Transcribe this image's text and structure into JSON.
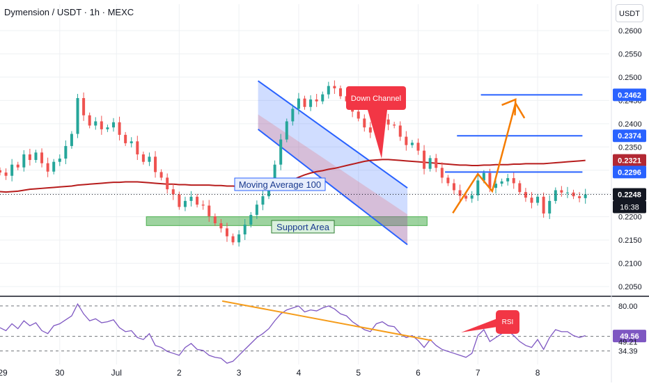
{
  "header": {
    "title": "Dymension / USDT · 1h · MEXC",
    "currency": "USDT"
  },
  "colors": {
    "up": "#26a69a",
    "down": "#ef5350",
    "ma": "#b71c1c",
    "channel": "#2962ff",
    "support": "#4caf50",
    "projection": "#f57c00",
    "rsi": "#7e57c2",
    "trendline": "#f59c1a",
    "label_red": "#f23645",
    "level_line": "#2962ff"
  },
  "chart_data": [
    {
      "type": "candlestick",
      "title": "Dymension / USDT · 1h · MEXC",
      "y_ticks": [
        "0.2600",
        "0.2550",
        "0.2500",
        "0.2450",
        "0.2400",
        "0.2350",
        "0.2300",
        "0.2250",
        "0.2200",
        "0.2150",
        "0.2100",
        "0.2050"
      ],
      "ylim": [
        0.2038,
        0.2612
      ],
      "x_ticks": [
        "29",
        "30",
        "Jul",
        "2",
        "3",
        "4",
        "5",
        "6",
        "7",
        "8"
      ],
      "xlim": [
        0,
        102
      ],
      "close": [
        0.2295,
        0.2288,
        0.2312,
        0.2306,
        0.2334,
        0.2322,
        0.2338,
        0.2315,
        0.2297,
        0.2318,
        0.2325,
        0.2352,
        0.2378,
        0.2455,
        0.2418,
        0.2396,
        0.2405,
        0.2388,
        0.2392,
        0.2403,
        0.2376,
        0.2358,
        0.2362,
        0.2334,
        0.2318,
        0.2329,
        0.2296,
        0.2284,
        0.2259,
        0.2248,
        0.2221,
        0.2234,
        0.2243,
        0.2226,
        0.2224,
        0.2201,
        0.2186,
        0.2175,
        0.2158,
        0.2145,
        0.2162,
        0.2183,
        0.2204,
        0.2226,
        0.2244,
        0.2268,
        0.2312,
        0.2366,
        0.2405,
        0.2432,
        0.2454,
        0.2436,
        0.2452,
        0.2448,
        0.2463,
        0.2481,
        0.2476,
        0.2459,
        0.2448,
        0.2426,
        0.2411,
        0.2392,
        0.2381,
        0.2402,
        0.2409,
        0.2398,
        0.2396,
        0.2372,
        0.2354,
        0.2359,
        0.2342,
        0.2303,
        0.2326,
        0.2305,
        0.2284,
        0.2272,
        0.2257,
        0.2245,
        0.2239,
        0.2246,
        0.2278,
        0.2294,
        0.2262,
        0.2271,
        0.2276,
        0.2283,
        0.2272,
        0.2253,
        0.2241,
        0.223,
        0.2243,
        0.2207,
        0.2234,
        0.2257,
        0.2252,
        0.2252,
        0.2244,
        0.224,
        0.2248
      ],
      "moving_average": {
        "name": "Moving Average 100",
        "values": [
          0.2254,
          0.2253,
          0.2254,
          0.2255,
          0.2257,
          0.2259,
          0.226,
          0.2261,
          0.2262,
          0.2263,
          0.2264,
          0.2265,
          0.2266,
          0.2268,
          0.2269,
          0.227,
          0.2271,
          0.2272,
          0.2273,
          0.2274,
          0.2274,
          0.2275,
          0.2275,
          0.2275,
          0.2274,
          0.2273,
          0.2272,
          0.2271,
          0.227,
          0.227,
          0.2269,
          0.2269,
          0.2268,
          0.2268,
          0.2268,
          0.2268,
          0.2267,
          0.2267,
          0.2266,
          0.2266,
          0.2265,
          0.2265,
          0.2266,
          0.2266,
          0.2267,
          0.2268,
          0.2269,
          0.2271,
          0.2274,
          0.2279,
          0.2285,
          0.229,
          0.2294,
          0.2297,
          0.2299,
          0.2302,
          0.2304,
          0.2307,
          0.231,
          0.2313,
          0.2316,
          0.2319,
          0.2321,
          0.2322,
          0.2323,
          0.2323,
          0.2322,
          0.2321,
          0.232,
          0.2319,
          0.2318,
          0.2317,
          0.2316,
          0.2315,
          0.2314,
          0.2313,
          0.2312,
          0.2311,
          0.2311,
          0.231,
          0.231,
          0.2311,
          0.2311,
          0.2312,
          0.2312,
          0.2312,
          0.2313,
          0.2313,
          0.2314,
          0.2314,
          0.2314,
          0.2314,
          0.2315,
          0.2316,
          0.2317,
          0.2318,
          0.2319,
          0.232,
          0.2321
        ]
      },
      "price_labels": [
        {
          "value": 0.2462,
          "text": "0.2462"
        },
        {
          "value": 0.2374,
          "text": "0.2374"
        },
        {
          "value": 0.2321,
          "text": "0.2321"
        },
        {
          "value": 0.2296,
          "text": "0.2296"
        },
        {
          "value": 0.2248,
          "text": "0.2248"
        }
      ],
      "countdown": "16:38",
      "horizontal_levels": [
        {
          "value": 0.2462,
          "x_start": 80.5,
          "x_end": 97.5
        },
        {
          "value": 0.2374,
          "x_start": 76.5,
          "x_end": 97.5
        },
        {
          "value": 0.2296,
          "x_start": 74.5,
          "x_end": 97.5
        }
      ],
      "annotations": {
        "down_channel_label": "Down Channel",
        "moving_average_label": "Moving Average 100",
        "support_label": "Support Area",
        "rsi_label": "RSI"
      },
      "channel": {
        "upper": [
          [
            43.2,
            0.2492
          ],
          [
            68.2,
            0.2262
          ]
        ],
        "lower": [
          [
            43.2,
            0.2388
          ],
          [
            68.2,
            0.214
          ]
        ]
      },
      "support_zone": {
        "x": [
          24.5,
          71.5
        ],
        "y": [
          0.2181,
          0.22
        ]
      },
      "projection_path": [
        [
          75.8,
          0.2208
        ],
        [
          80.0,
          0.2292
        ],
        [
          82.4,
          0.2255
        ],
        [
          86.3,
          0.2444
        ],
        [
          87.8,
          0.2412
        ]
      ]
    },
    {
      "type": "line",
      "title": "RSI",
      "y_ticks": [
        "80.00",
        "49.56",
        "49.21",
        "34.39"
      ],
      "ylim": [
        25,
        87
      ],
      "reference_lines": [
        80.0,
        49.21,
        34.39
      ],
      "current_value": "49.56",
      "values": [
        58,
        55,
        62,
        57,
        65,
        60,
        63,
        55,
        52,
        60,
        62,
        66,
        70,
        82,
        72,
        65,
        67,
        63,
        64,
        66,
        58,
        54,
        55,
        48,
        46,
        52,
        40,
        38,
        34,
        32,
        30,
        38,
        42,
        36,
        35,
        30,
        28,
        27,
        22,
        24,
        30,
        36,
        42,
        48,
        52,
        57,
        65,
        72,
        76,
        78,
        80,
        74,
        76,
        75,
        78,
        80,
        77,
        72,
        70,
        64,
        60,
        56,
        54,
        62,
        64,
        60,
        59,
        52,
        48,
        50,
        45,
        38,
        46,
        40,
        36,
        34,
        32,
        30,
        28,
        32,
        50,
        56,
        44,
        48,
        52,
        55,
        50,
        44,
        40,
        38,
        46,
        36,
        48,
        56,
        54,
        54,
        50,
        48,
        50
      ],
      "trendline": [
        [
          37.2,
          85
        ],
        [
          72.3,
          45
        ]
      ]
    }
  ]
}
